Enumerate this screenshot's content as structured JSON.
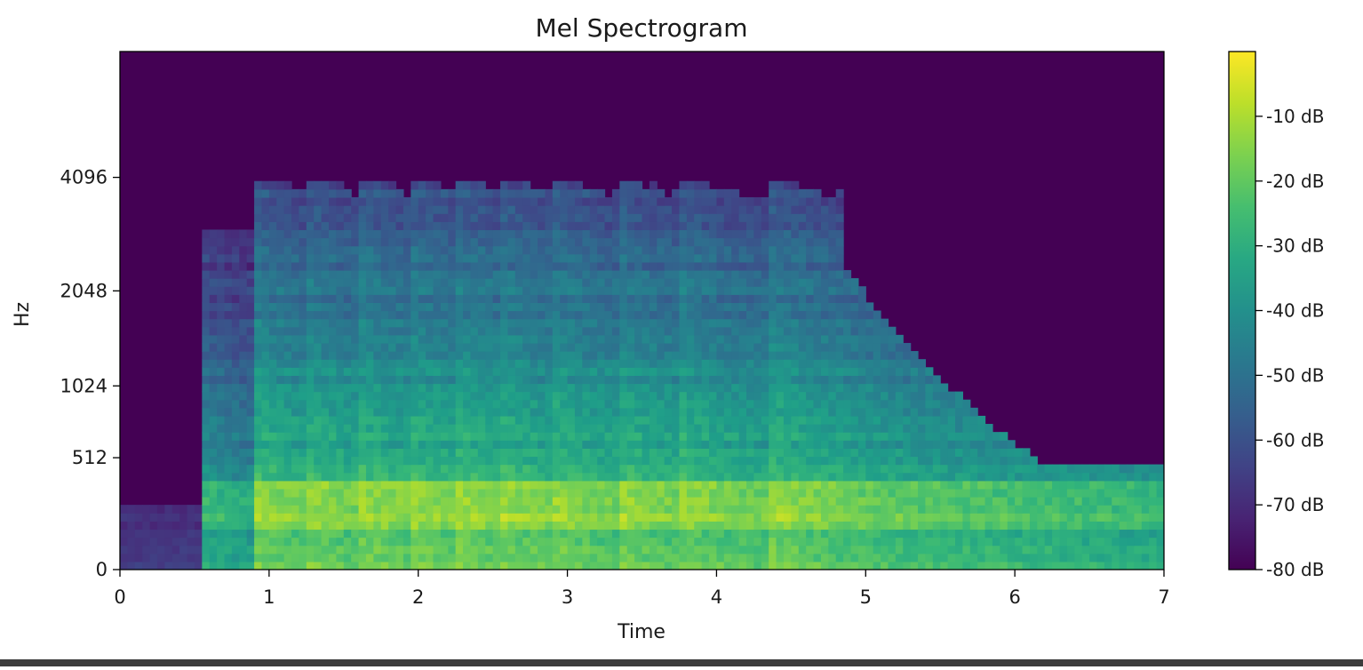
{
  "chart_data": {
    "type": "heatmap",
    "title": "Mel Spectrogram",
    "xlabel": "Time",
    "ylabel": "Hz",
    "x_range": [
      0,
      7
    ],
    "x_ticks": [
      0,
      1,
      2,
      3,
      4,
      5,
      6,
      7
    ],
    "y_scale": "mel",
    "y_ticks": [
      0,
      512,
      1024,
      2048,
      4096
    ],
    "y_tick_labels": [
      "0",
      "512",
      "1024",
      "2048",
      "4096"
    ],
    "colorbar": {
      "colormap": "viridis",
      "range_db": [
        -80,
        0
      ],
      "ticks": [
        -10,
        -20,
        -30,
        -40,
        -50,
        -60,
        -70,
        -80
      ],
      "tick_labels": [
        "-10 dB",
        "-20 dB",
        "-30 dB",
        "-40 dB",
        "-50 dB",
        "-60 dB",
        "-70 dB",
        "-80 dB"
      ]
    },
    "estimated_structure": {
      "silence_before_s": 0.55,
      "note_onsets_s": [
        0.55,
        0.88,
        1.23,
        1.6,
        1.93,
        2.27,
        2.55,
        2.9,
        3.33,
        3.73,
        4.35
      ],
      "sustain_end_s": 4.85,
      "decay_end_s": 7.0,
      "loudest_band_hz": [
        150,
        400
      ],
      "loudest_level_db": -5,
      "high_freq_cutoff_hz": 4096,
      "background_level_db": -80
    }
  }
}
